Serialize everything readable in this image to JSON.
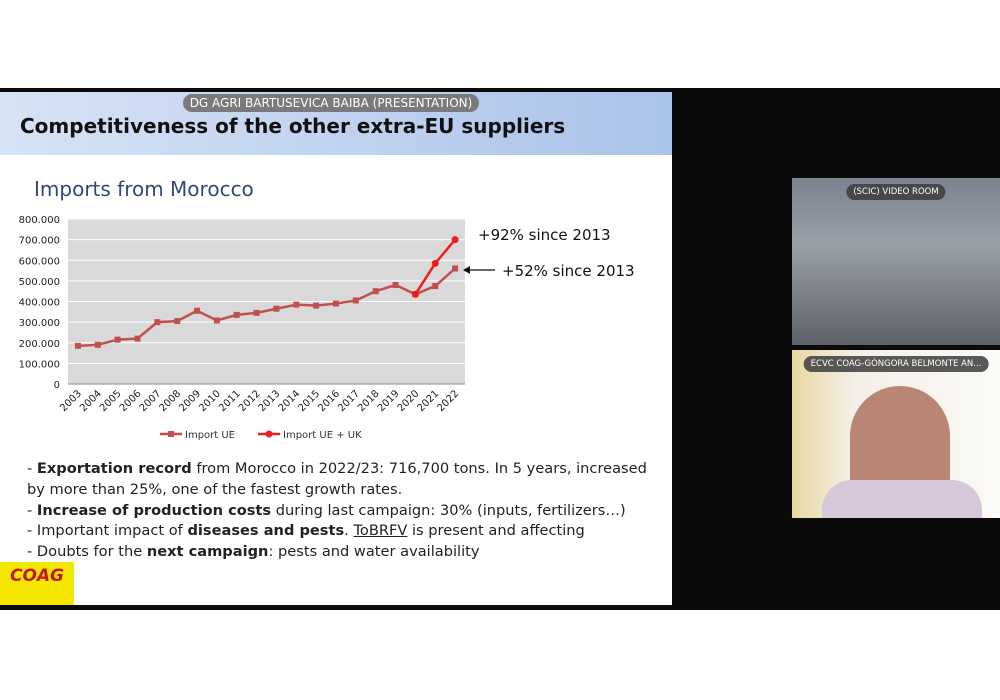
{
  "header": {
    "presenter": "DG AGRI BARTUSEVICA BAIBA (PRESENTATION)",
    "title": "Competitiveness of the other extra-EU suppliers"
  },
  "chart_data": {
    "type": "line",
    "title": "Imports from Morocco",
    "categories": [
      "2003",
      "2004",
      "2005",
      "2006",
      "2007",
      "2008",
      "2009",
      "2010",
      "2011",
      "2012",
      "2013",
      "2014",
      "2015",
      "2016",
      "2017",
      "2018",
      "2019",
      "2020",
      "2021",
      "2022"
    ],
    "series": [
      {
        "name": "Import UE",
        "color": "#c0504d",
        "values": [
          185000,
          190000,
          215000,
          220000,
          300000,
          305000,
          355000,
          308000,
          335000,
          345000,
          365000,
          385000,
          380000,
          390000,
          405000,
          450000,
          480000,
          435000,
          475000,
          560000
        ]
      },
      {
        "name": "Import UE + UK",
        "color": "#ee1c1c",
        "values": [
          null,
          null,
          null,
          null,
          null,
          null,
          null,
          null,
          null,
          null,
          null,
          null,
          null,
          null,
          null,
          null,
          null,
          435000,
          585000,
          700000
        ]
      }
    ],
    "ylim": [
      0,
      800000
    ],
    "yticks": [
      0,
      {
        "value": 100000,
        "label": "100.000"
      },
      {
        "value": 200000,
        "label": "200.000"
      },
      {
        "value": 300000,
        "label": "300.000"
      },
      {
        "value": 400000,
        "label": "400.000"
      },
      {
        "value": 500000,
        "label": "500.000"
      },
      {
        "value": 600000,
        "label": "600.000"
      },
      {
        "value": 700000,
        "label": "700.000"
      },
      {
        "value": 800000,
        "label": "800.000"
      }
    ],
    "grid": true,
    "legend": "bottom",
    "annotations": [
      "+92% since 2013",
      "+52% since 2013"
    ]
  },
  "bullets": [
    [
      {
        "text": "- "
      },
      {
        "text": "Exportation record",
        "bold": true
      },
      {
        "text": " from Morocco in 2022/23: 716,700 tons. In 5 years, increased by more than 25%, one of the fastest growth rates."
      }
    ],
    [
      {
        "text": "- "
      },
      {
        "text": "Increase of production costs",
        "bold": true
      },
      {
        "text": " during last campaign: 30% (inputs, fertilizers…)"
      }
    ],
    [
      {
        "text": "- Important impact of "
      },
      {
        "text": "diseases and pests",
        "bold": true
      },
      {
        "text": ". "
      },
      {
        "text": "ToBRFV",
        "underline": true
      },
      {
        "text": " is present and affecting"
      }
    ],
    [
      {
        "text": "- Doubts for the "
      },
      {
        "text": "next campaign",
        "bold": true
      },
      {
        "text": ": pests and water availability"
      }
    ]
  ],
  "logo": "COAG",
  "video": [
    "(SCIC) VIDEO ROOM",
    "ECVC COAG-GÓNGORA BELMONTE AN..."
  ]
}
